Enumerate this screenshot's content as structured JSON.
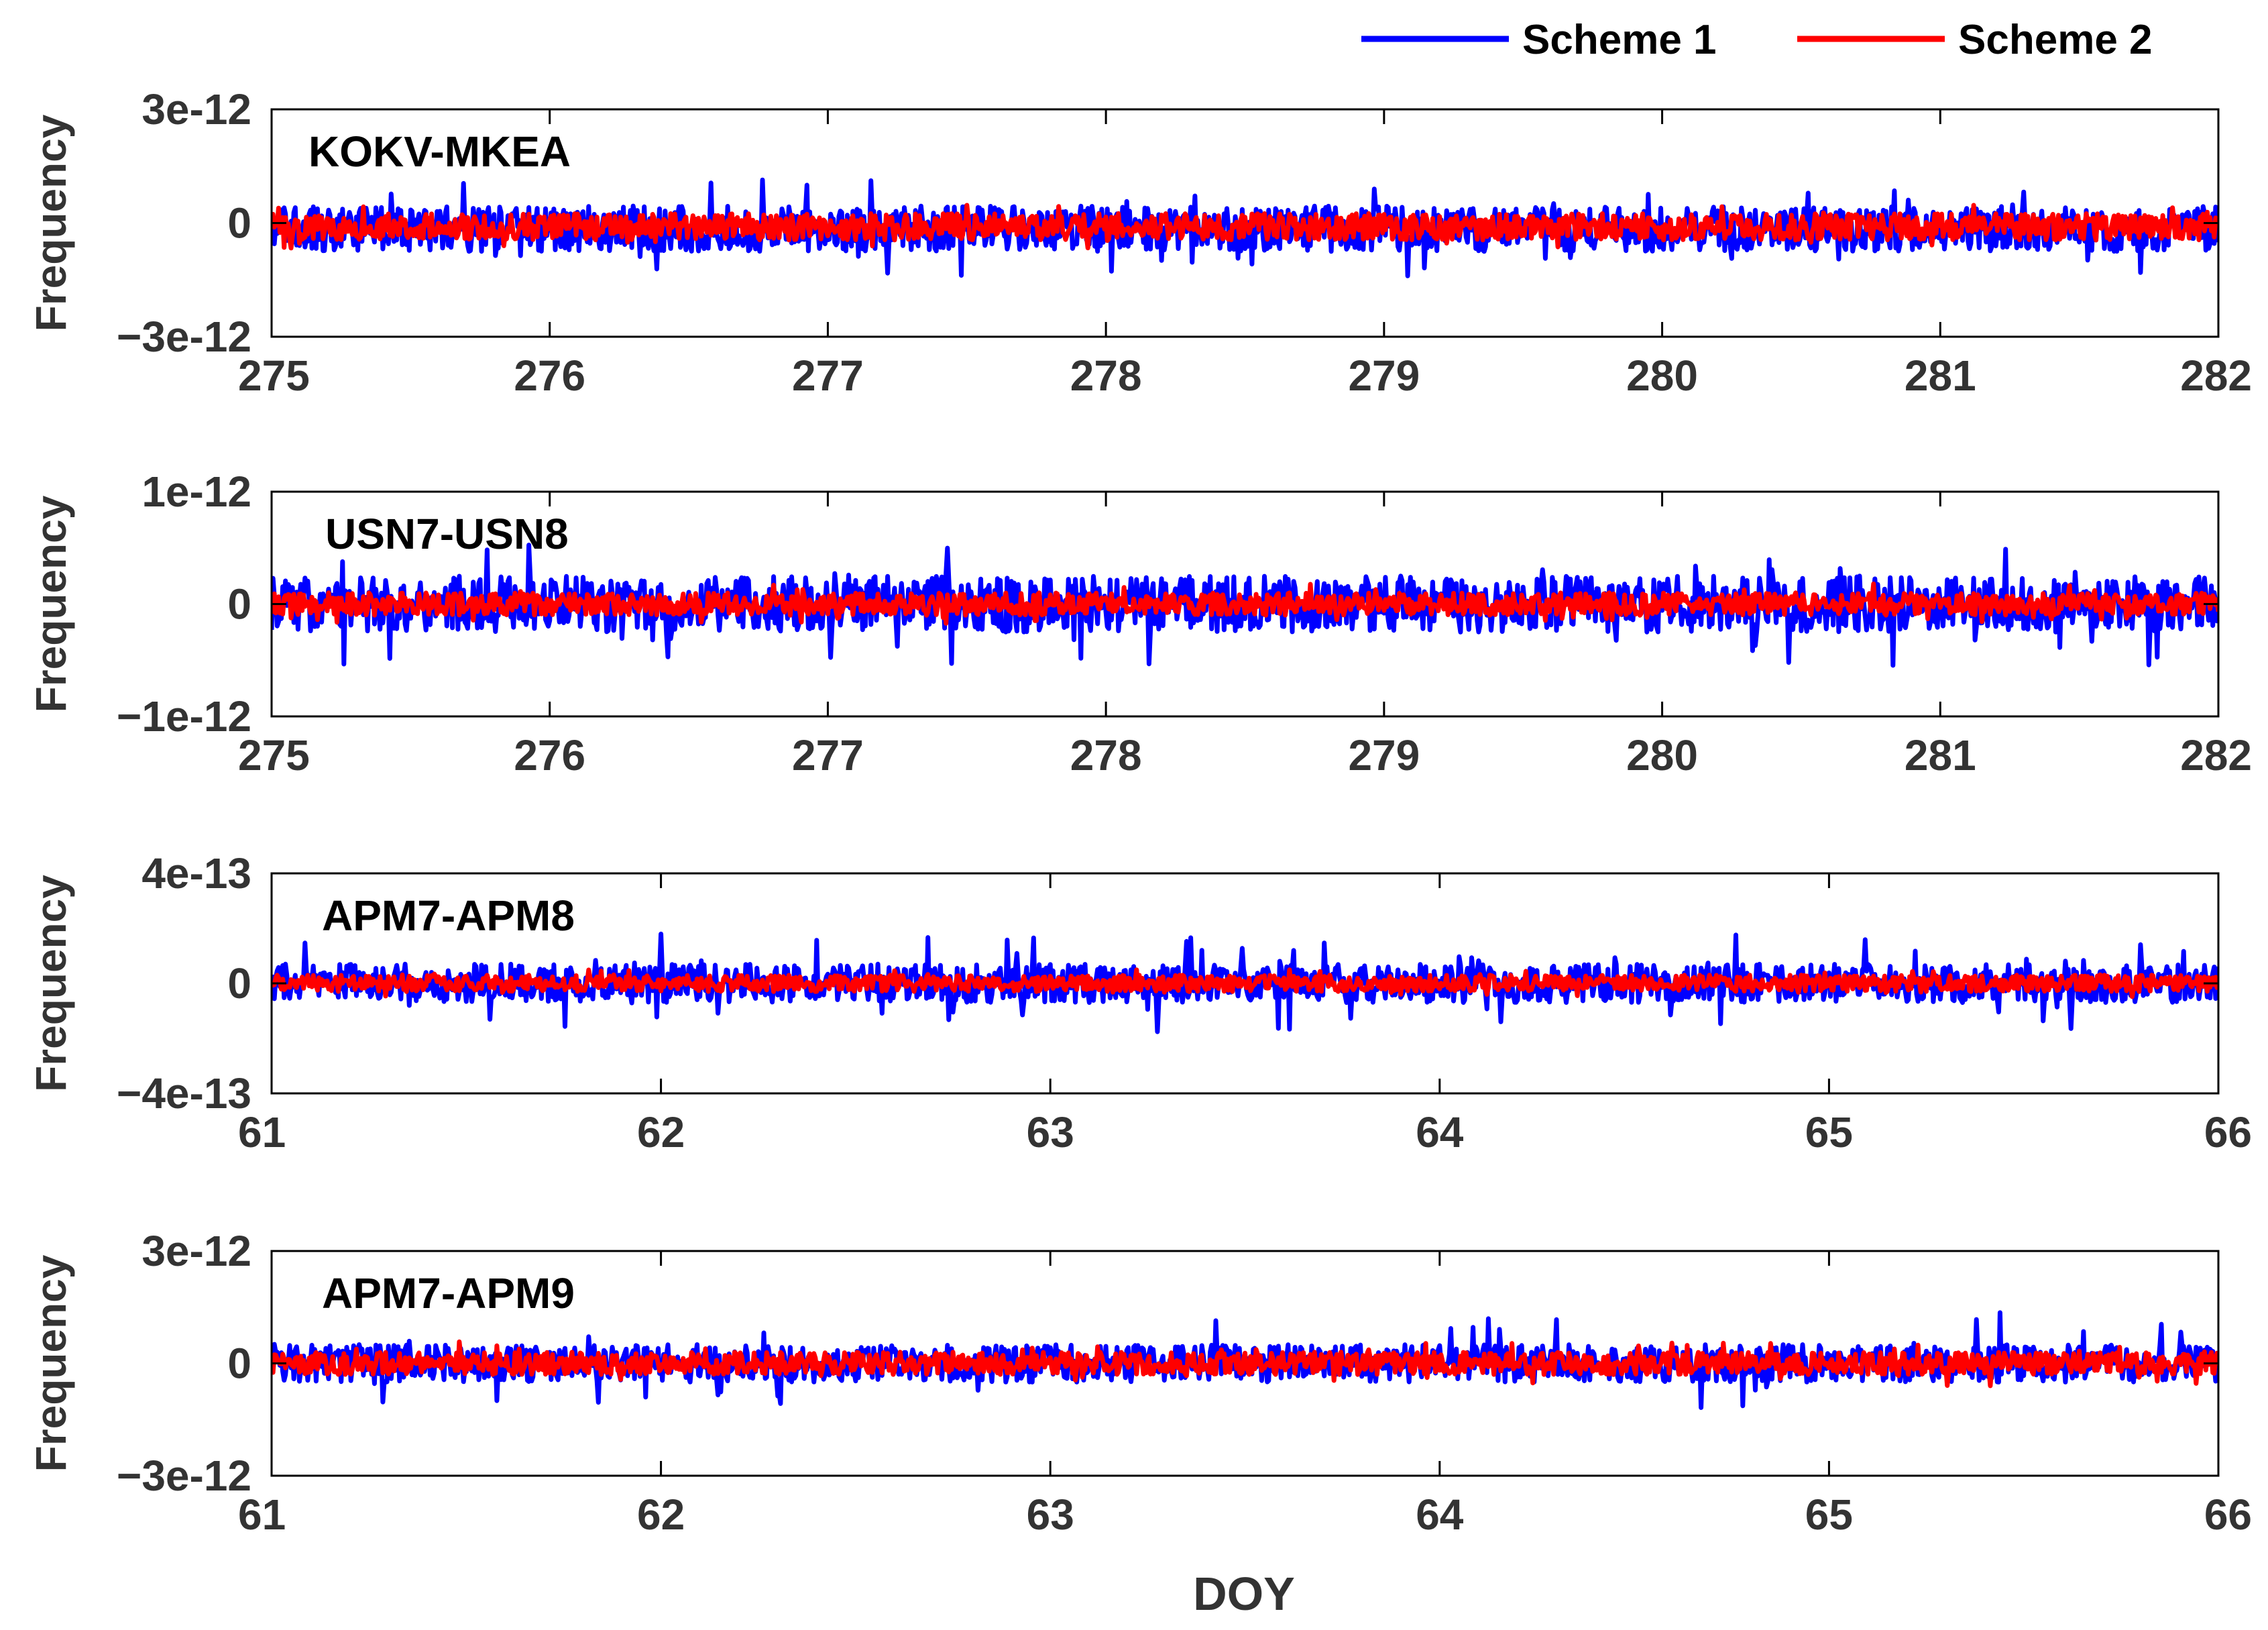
{
  "chart_data": {
    "type": "line",
    "xlabel": "DOY",
    "legend": {
      "placement": "top-right",
      "entries": [
        {
          "name": "Scheme 1",
          "color": "#0000ff"
        },
        {
          "name": "Scheme 2",
          "color": "#ff0000"
        }
      ]
    },
    "panels": [
      {
        "label": "KOKV-MKEA",
        "ylabel": "Frequency",
        "xlim": [
          275,
          282
        ],
        "xticks": [
          275,
          276,
          277,
          278,
          279,
          280,
          281,
          282
        ],
        "xtick_labels": [
          "275",
          "276",
          "277",
          "278",
          "279",
          "280",
          "281",
          "282"
        ],
        "ylim": [
          -3e-12,
          3e-12
        ],
        "ytick_labels": [
          "3e-12",
          "0",
          "−3e-12"
        ],
        "series": [
          {
            "name": "Scheme 1",
            "color": "#0000ff",
            "typical_amplitude": 6e-13,
            "peak_amplitude": 1.3e-12,
            "mean": -1.5e-13
          },
          {
            "name": "Scheme 2",
            "color": "#ff0000",
            "typical_amplitude": 3.5e-13,
            "peak_amplitude": 6e-13,
            "mean": -1e-13
          }
        ]
      },
      {
        "label": "USN7-USN8",
        "ylabel": "Frequency",
        "xlim": [
          275,
          282
        ],
        "xticks": [
          275,
          276,
          277,
          278,
          279,
          280,
          281,
          282
        ],
        "xtick_labels": [
          "275",
          "276",
          "277",
          "278",
          "279",
          "280",
          "281",
          "282"
        ],
        "ylim": [
          -1e-12,
          1e-12
        ],
        "ytick_labels": [
          "1e-12",
          "0",
          "−1e-12"
        ],
        "series": [
          {
            "name": "Scheme 1",
            "color": "#0000ff",
            "typical_amplitude": 2.5e-13,
            "peak_amplitude": 5.5e-13,
            "mean": 0
          },
          {
            "name": "Scheme 2",
            "color": "#ff0000",
            "typical_amplitude": 1e-13,
            "peak_amplitude": 1.8e-13,
            "mean": 0
          }
        ]
      },
      {
        "label": "APM7-APM8",
        "ylabel": "Frequency",
        "xlim": [
          61,
          66
        ],
        "xticks": [
          61,
          62,
          63,
          64,
          65,
          66
        ],
        "xtick_labels": [
          "61",
          "62",
          "63",
          "64",
          "65",
          "66"
        ],
        "ylim": [
          -4e-13,
          4e-13
        ],
        "ytick_labels": [
          "4e-13",
          "0",
          "−4e-13"
        ],
        "series": [
          {
            "name": "Scheme 1",
            "color": "#0000ff",
            "typical_amplitude": 7e-14,
            "peak_amplitude": 1.8e-13,
            "mean": 0
          },
          {
            "name": "Scheme 2",
            "color": "#ff0000",
            "typical_amplitude": 3e-14,
            "peak_amplitude": 5e-14,
            "mean": 0
          }
        ]
      },
      {
        "label": "APM7-APM9",
        "ylabel": "Frequency",
        "xlim": [
          61,
          66
        ],
        "xticks": [
          61,
          62,
          63,
          64,
          65,
          66
        ],
        "xtick_labels": [
          "61",
          "62",
          "63",
          "64",
          "65",
          "66"
        ],
        "ylim": [
          -3e-12,
          3e-12
        ],
        "ytick_labels": [
          "3e-12",
          "0",
          "−3e-12"
        ],
        "series": [
          {
            "name": "Scheme 1",
            "color": "#0000ff",
            "typical_amplitude": 5e-13,
            "peak_amplitude": 1.4e-12,
            "mean": 0
          },
          {
            "name": "Scheme 2",
            "color": "#ff0000",
            "typical_amplitude": 3e-13,
            "peak_amplitude": 6e-13,
            "mean": 0
          }
        ]
      }
    ]
  }
}
